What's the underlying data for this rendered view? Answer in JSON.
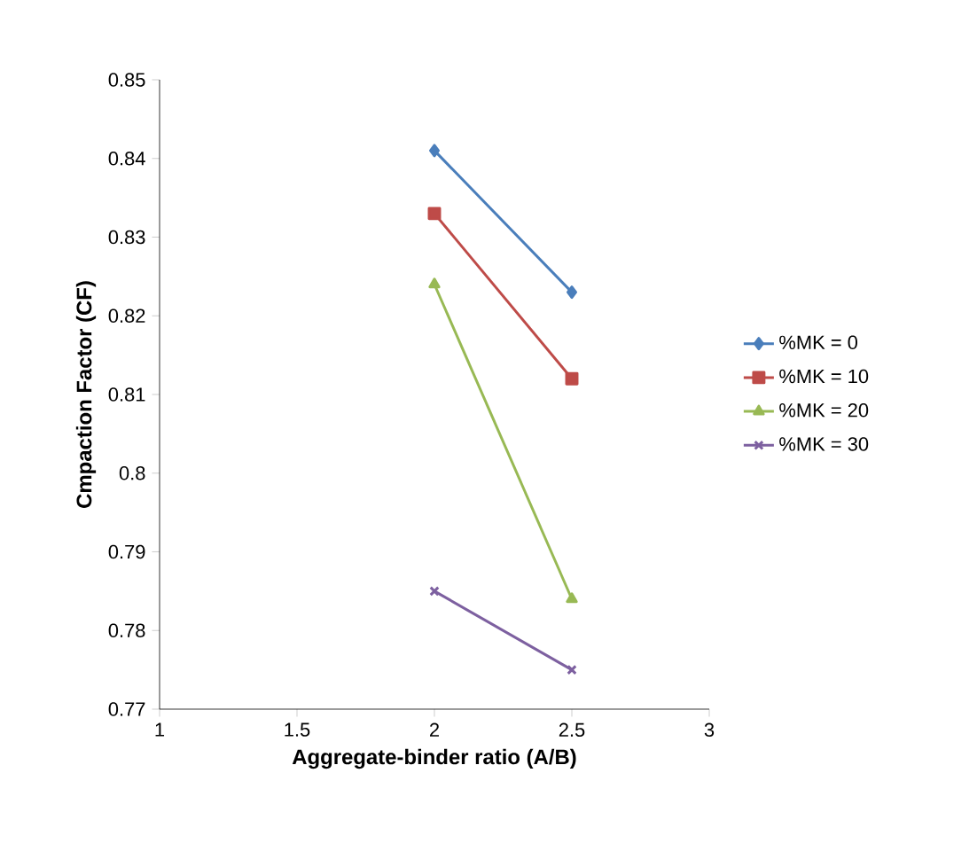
{
  "chart_data": {
    "type": "line",
    "xlabel": "Aggregate-binder ratio (A/B)",
    "ylabel": "Cmpaction Factor (CF)",
    "x": [
      2,
      2.5
    ],
    "series": [
      {
        "name": "%MK = 0",
        "color": "#4a7ebb",
        "marker": "diamond",
        "values": [
          0.841,
          0.823
        ]
      },
      {
        "name": "%MK = 10",
        "color": "#be4b48",
        "marker": "square",
        "values": [
          0.833,
          0.812
        ]
      },
      {
        "name": "%MK = 20",
        "color": "#98b954",
        "marker": "triangle",
        "values": [
          0.824,
          0.784
        ]
      },
      {
        "name": "%MK = 30",
        "color": "#7d60a0",
        "marker": "cross",
        "values": [
          0.785,
          0.775
        ]
      }
    ],
    "xlim": [
      1,
      3
    ],
    "xticks": [
      1,
      1.5,
      2,
      2.5,
      3
    ],
    "ylim": [
      0.77,
      0.85
    ],
    "yticks": [
      0.77,
      0.78,
      0.79,
      0.8,
      0.81,
      0.82,
      0.83,
      0.84,
      0.85
    ],
    "legend": "right",
    "grid": false,
    "line_style": "solid"
  }
}
